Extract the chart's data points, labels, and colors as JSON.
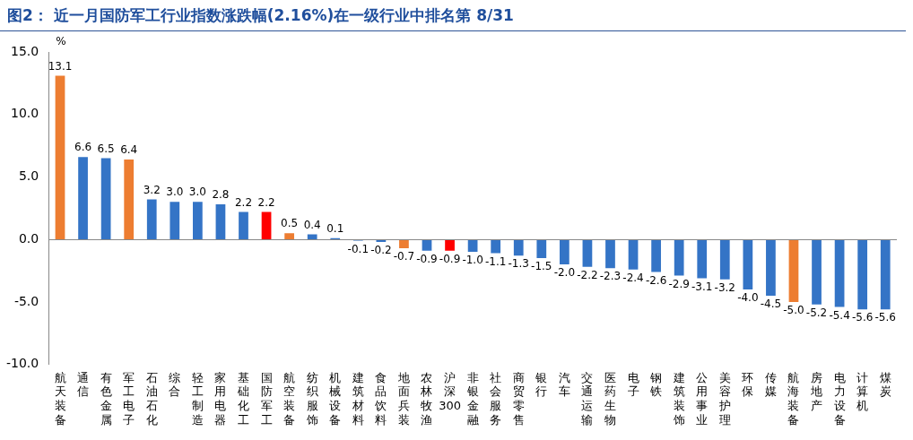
{
  "chart_data": {
    "type": "bar",
    "title": "图2：  近一月国防军工行业指数涨跌幅(2.16%)在一级行业中排名第 8/31",
    "ylabel": "%",
    "categories": [
      "航天装备",
      "通信",
      "有色金属",
      "军工电子",
      "石油石化",
      "综合",
      "轻工制造",
      "家用电器",
      "基础化工",
      "国防军工",
      "航空装备",
      "纺织服饰",
      "机械设备",
      "建筑材料",
      "食品饮料",
      "地面兵装",
      "农林牧渔",
      "沪深300",
      "非银金融",
      "社会服务",
      "商贸零售",
      "银行",
      "汽车",
      "交通运输",
      "医药生物",
      "电子",
      "钢铁",
      "建筑装饰",
      "公用事业",
      "美容护理",
      "环保",
      "传媒",
      "航海装备",
      "房地产",
      "电力设备",
      "计算机",
      "煤炭"
    ],
    "values": [
      13.1,
      6.6,
      6.5,
      6.4,
      3.2,
      3.0,
      3.0,
      2.8,
      2.2,
      2.2,
      0.5,
      0.4,
      0.1,
      -0.1,
      -0.2,
      -0.7,
      -0.9,
      -0.9,
      -1.0,
      -1.1,
      -1.3,
      -1.5,
      -2.0,
      -2.2,
      -2.3,
      -2.4,
      -2.6,
      -2.9,
      -3.1,
      -3.2,
      -4.0,
      -4.5,
      -5.0,
      -5.2,
      -5.4,
      -5.6,
      -5.6
    ],
    "value_labels": [
      "13.1",
      "6.6",
      "6.5",
      "6.4",
      "3.2",
      "3.0",
      "3.0",
      "2.8",
      "2.2",
      "2.2",
      "0.5",
      "0.4",
      "0.1",
      "-0.1",
      "-0.2",
      "-0.7",
      "-0.9",
      "-0.9",
      "-1.0",
      "-1.1",
      "-1.3",
      "-1.5",
      "-2.0",
      "-2.2",
      "-2.3",
      "-2.4",
      "-2.6",
      "-2.9",
      "-3.1",
      "-3.2",
      "-4.0",
      "-4.5",
      "-5.0",
      "-5.2",
      "-5.4",
      "-5.6",
      "-5.6"
    ],
    "colors": [
      "#ed7d31",
      "#3474c6",
      "#3474c6",
      "#ed7d31",
      "#3474c6",
      "#3474c6",
      "#3474c6",
      "#3474c6",
      "#3474c6",
      "#ff0000",
      "#ed7d31",
      "#3474c6",
      "#3474c6",
      "#3474c6",
      "#3474c6",
      "#ed7d31",
      "#3474c6",
      "#ff0000",
      "#3474c6",
      "#3474c6",
      "#3474c6",
      "#3474c6",
      "#3474c6",
      "#3474c6",
      "#3474c6",
      "#3474c6",
      "#3474c6",
      "#3474c6",
      "#3474c6",
      "#3474c6",
      "#3474c6",
      "#3474c6",
      "#ed7d31",
      "#3474c6",
      "#3474c6",
      "#3474c6",
      "#3474c6"
    ],
    "ylim": [
      -10,
      15
    ],
    "yticks": [
      {
        "value": -10,
        "label": "-10.0"
      },
      {
        "value": -5,
        "label": "-5.0"
      },
      {
        "value": 0,
        "label": "0.0"
      },
      {
        "value": 5,
        "label": "5.0"
      },
      {
        "value": 10,
        "label": "10.0"
      },
      {
        "value": 15,
        "label": "15.0"
      }
    ],
    "legend": false
  }
}
